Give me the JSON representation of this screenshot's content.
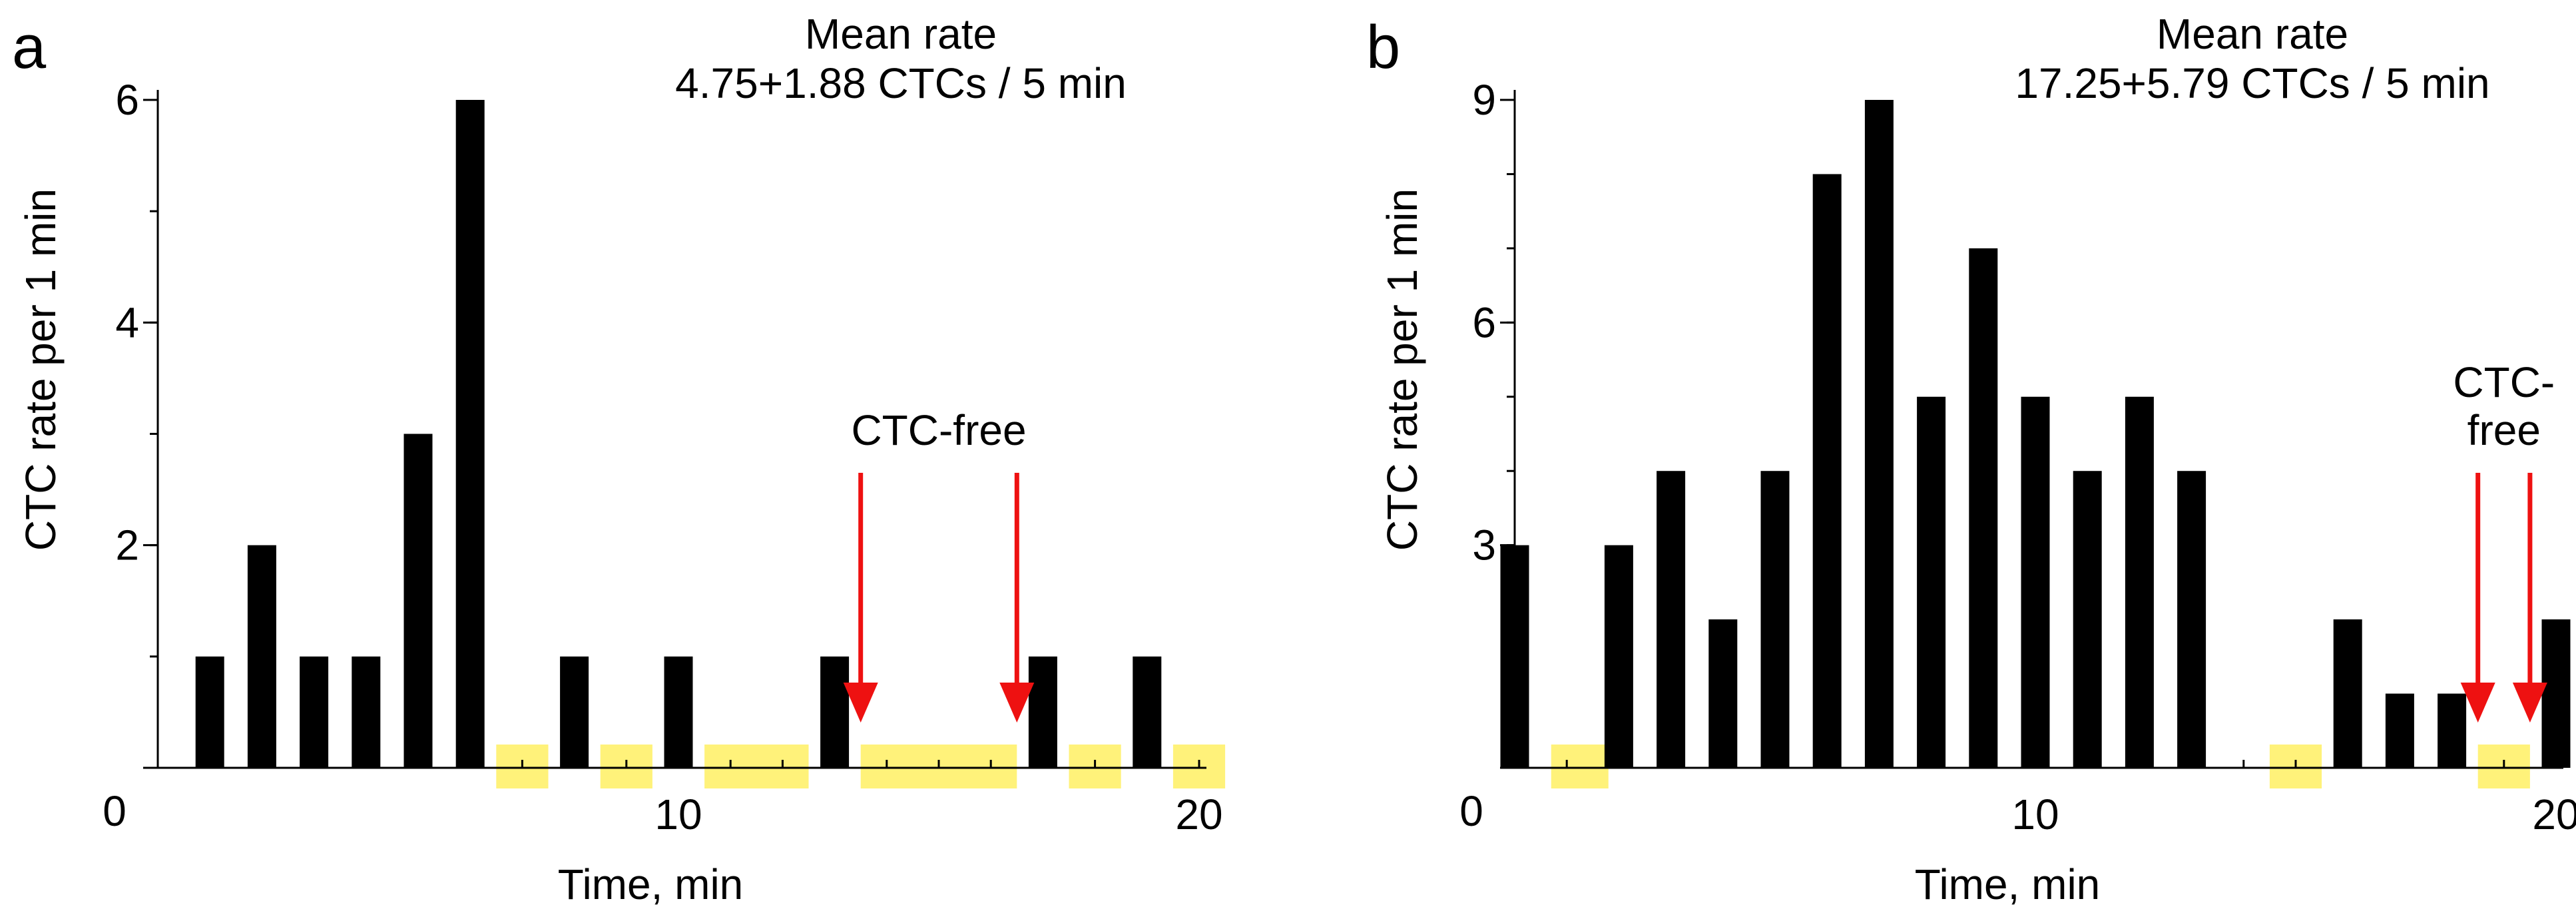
{
  "chart_data": [
    {
      "panel": "a",
      "type": "bar",
      "title": "Mean rate",
      "subtitle": "4.75+1.88 CTCs / 5 min",
      "xlabel": "Time, min",
      "ylabel": "CTC rate per 1 min",
      "xlim": [
        0,
        20.2
      ],
      "ylim": [
        0,
        6
      ],
      "xticks": [
        0,
        10,
        20
      ],
      "yticks": [
        0,
        2,
        4,
        6
      ],
      "minor_y_step": 1,
      "minor_x_step": 1,
      "x": [
        1,
        2,
        3,
        4,
        5,
        6,
        8,
        10,
        13,
        17,
        19
      ],
      "values": [
        1,
        2,
        1,
        1,
        3,
        6,
        1,
        1,
        1,
        1,
        1
      ],
      "ctc_free_intervals": [
        [
          6.5,
          7.5
        ],
        [
          8.5,
          9.5
        ],
        [
          10.5,
          12.5
        ],
        [
          13.5,
          16.5
        ],
        [
          17.5,
          18.5
        ],
        [
          19.5,
          20.5
        ]
      ],
      "annotation": {
        "lines": [
          "CTC-free"
        ],
        "arrows_x": [
          13.5,
          16.5
        ]
      },
      "highlight_color": "#fff27a",
      "arrow_color": "#ee1111",
      "bar_color": "#000000"
    },
    {
      "panel": "b",
      "type": "bar",
      "title": "Mean rate",
      "subtitle": "17.25+5.79 CTCs / 5 min",
      "xlabel": "Time, min",
      "ylabel": "CTC rate per 1 min",
      "xlim": [
        0,
        20.2
      ],
      "ylim": [
        0,
        9
      ],
      "xticks": [
        0,
        10,
        20
      ],
      "yticks": [
        0,
        3,
        6,
        9
      ],
      "minor_y_step": 1,
      "minor_x_step": 1,
      "x": [
        0,
        2,
        3,
        4,
        5,
        6,
        7,
        8,
        9,
        10,
        11,
        12,
        13,
        14,
        16,
        17,
        18,
        20
      ],
      "values": [
        3,
        3,
        4,
        2,
        4,
        8,
        9,
        5,
        7,
        5,
        4,
        5,
        4,
        0,
        2,
        1,
        1,
        2
      ],
      "ctc_free_intervals": [
        [
          0.7,
          1.8
        ],
        [
          14.5,
          15.5
        ],
        [
          18.5,
          19.5
        ]
      ],
      "annotation": {
        "lines": [
          "CTC-",
          "free"
        ],
        "arrows_x": [
          18.5,
          19.5
        ]
      },
      "highlight_color": "#fff27a",
      "arrow_color": "#ee1111",
      "bar_color": "#000000"
    }
  ]
}
